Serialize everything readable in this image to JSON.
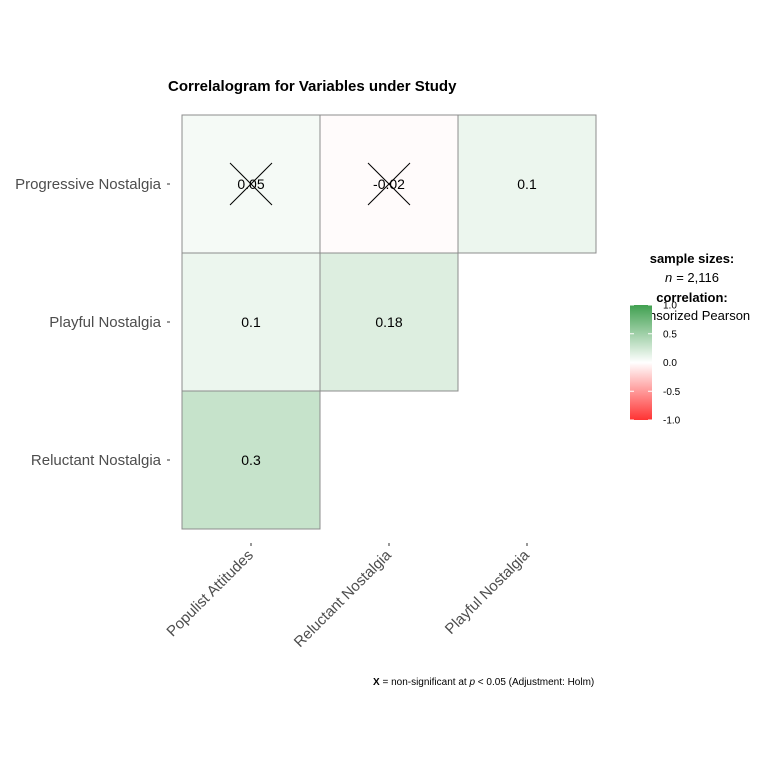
{
  "chart_data": {
    "type": "heatmap",
    "title": "Correlalogram for Variables under Study",
    "rows": [
      "Progressive Nostalgia",
      "Playful Nostalgia",
      "Reluctant Nostalgia"
    ],
    "columns": [
      "Populist Attitudes",
      "Reluctant Nostalgia",
      "Playful Nostalgia"
    ],
    "cells": [
      {
        "row": "Progressive Nostalgia",
        "col": "Populist Attitudes",
        "value": 0.05,
        "label": "0.05",
        "significant": false
      },
      {
        "row": "Progressive Nostalgia",
        "col": "Reluctant Nostalgia",
        "value": -0.02,
        "label": "-0.02",
        "significant": false
      },
      {
        "row": "Progressive Nostalgia",
        "col": "Playful Nostalgia",
        "value": 0.1,
        "label": "0.1",
        "significant": true
      },
      {
        "row": "Playful Nostalgia",
        "col": "Populist Attitudes",
        "value": 0.1,
        "label": "0.1",
        "significant": true
      },
      {
        "row": "Playful Nostalgia",
        "col": "Reluctant Nostalgia",
        "value": 0.18,
        "label": "0.18",
        "significant": true
      },
      {
        "row": "Reluctant Nostalgia",
        "col": "Populist Attitudes",
        "value": 0.3,
        "label": "0.3",
        "significant": true
      }
    ],
    "colors": {
      "low": "#ff3333",
      "mid": "#ffffff",
      "high": "#40a050"
    },
    "value_range": [
      -1,
      1
    ],
    "legend": {
      "position": "right",
      "sample_heading": "sample sizes:",
      "sample_label": "n",
      "sample_value": "= 2,116",
      "corr_heading": "correlation:",
      "corr_method": "Winsorized Pearson",
      "ticks": [
        "1.0",
        "0.5",
        "0.0",
        "-0.5",
        "-1.0"
      ]
    },
    "caption": {
      "marker": "X",
      "text_before": " = non-significant at ",
      "p": "p",
      "text_after": " < 0.05 (Adjustment: Holm)"
    }
  }
}
